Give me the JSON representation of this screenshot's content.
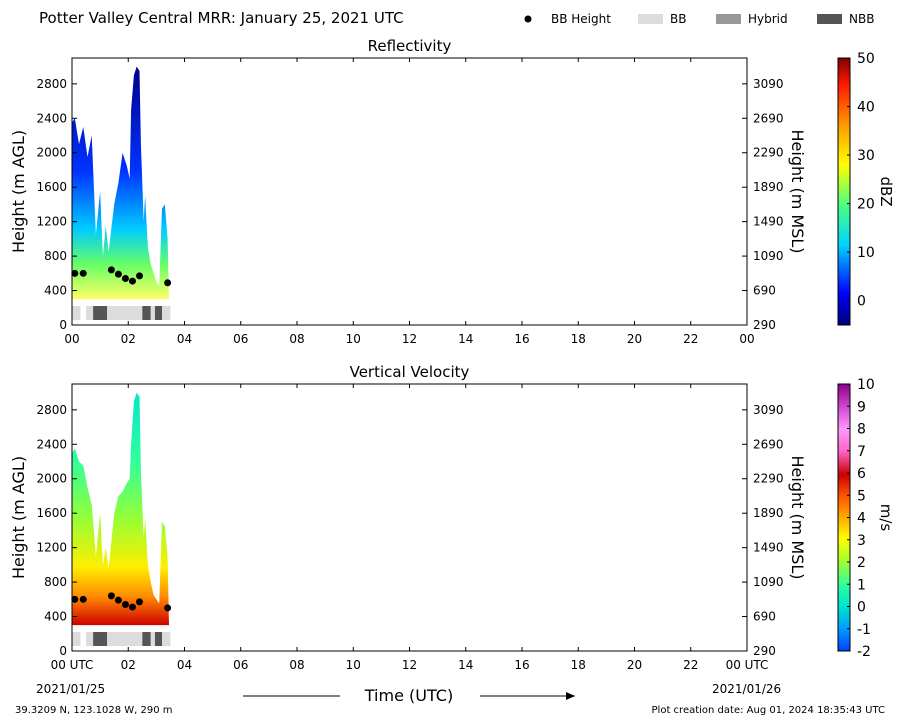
{
  "header": {
    "title": "Potter Valley Central MRR:  January 25, 2021 UTC"
  },
  "legend": [
    {
      "label": "BB Height",
      "kind": "dot",
      "color": "#000000"
    },
    {
      "label": "BB",
      "kind": "box",
      "color": "#dcdcdc"
    },
    {
      "label": "Hybrid",
      "kind": "box",
      "color": "#999999"
    },
    {
      "label": "NBB",
      "kind": "box",
      "color": "#555555"
    }
  ],
  "footer": {
    "location": "39.3209 N, 123.1028 W, 290 m",
    "created": "Plot creation date: Aug 01, 2024 18:35:43 UTC",
    "xlabel": "Time (UTC)",
    "start_date": "2021/01/25",
    "end_date": "2021/01/26"
  },
  "chart_data": [
    {
      "type": "heatmap",
      "title": "Reflectivity",
      "ylabel": "Height (m AGL)",
      "y2label": "Height (m MSL)",
      "xlim": [
        0,
        24
      ],
      "ylim": [
        0,
        3100
      ],
      "x_ticks": [
        "00",
        "02",
        "04",
        "06",
        "08",
        "10",
        "12",
        "14",
        "16",
        "18",
        "20",
        "22",
        "00"
      ],
      "y_ticks": [
        "0",
        "400",
        "800",
        "1200",
        "1600",
        "2000",
        "2400",
        "2800"
      ],
      "y2_ticks": [
        "290",
        "690",
        "1090",
        "1490",
        "1890",
        "2290",
        "2690",
        "3090"
      ],
      "colorbar": {
        "label": "dBZ",
        "range": [
          -5,
          50
        ],
        "ticks": [
          "0",
          "10",
          "20",
          "30",
          "40",
          "50"
        ]
      },
      "echo_top_m": [
        [
          0.0,
          2350
        ],
        [
          0.1,
          2400
        ],
        [
          0.25,
          2100
        ],
        [
          0.4,
          2300
        ],
        [
          0.55,
          1950
        ],
        [
          0.7,
          2200
        ],
        [
          0.85,
          1050
        ],
        [
          1.0,
          1550
        ],
        [
          1.1,
          800
        ],
        [
          1.2,
          1150
        ],
        [
          1.3,
          850
        ],
        [
          1.5,
          1400
        ],
        [
          1.65,
          1650
        ],
        [
          1.8,
          2000
        ],
        [
          1.95,
          1850
        ],
        [
          2.05,
          1700
        ],
        [
          2.1,
          2500
        ],
        [
          2.2,
          2900
        ],
        [
          2.3,
          3000
        ],
        [
          2.4,
          2950
        ],
        [
          2.45,
          2100
        ],
        [
          2.55,
          1200
        ],
        [
          2.6,
          1500
        ],
        [
          2.7,
          900
        ],
        [
          2.8,
          700
        ],
        [
          2.9,
          600
        ],
        [
          3.0,
          500
        ],
        [
          3.1,
          450
        ],
        [
          3.2,
          1350
        ],
        [
          3.3,
          1400
        ],
        [
          3.4,
          1000
        ],
        [
          3.45,
          300
        ]
      ],
      "bb_height_m": [
        [
          0.1,
          600
        ],
        [
          0.4,
          600
        ],
        [
          1.4,
          640
        ],
        [
          1.65,
          590
        ],
        [
          1.9,
          540
        ],
        [
          2.15,
          510
        ],
        [
          2.4,
          570
        ],
        [
          3.4,
          490
        ]
      ],
      "bb_type": [
        {
          "start": 0.0,
          "end": 0.3,
          "type": "BB"
        },
        {
          "start": 0.5,
          "end": 0.75,
          "type": "BB"
        },
        {
          "start": 0.75,
          "end": 1.25,
          "type": "NBB"
        },
        {
          "start": 1.25,
          "end": 2.5,
          "type": "BB"
        },
        {
          "start": 2.5,
          "end": 2.8,
          "type": "NBB"
        },
        {
          "start": 2.8,
          "end": 2.95,
          "type": "BB"
        },
        {
          "start": 2.95,
          "end": 3.2,
          "type": "NBB"
        },
        {
          "start": 3.2,
          "end": 3.5,
          "type": "BB"
        }
      ]
    },
    {
      "type": "heatmap",
      "title": "Vertical Velocity",
      "ylabel": "Height (m AGL)",
      "y2label": "Height (m MSL)",
      "xlim": [
        0,
        24
      ],
      "ylim": [
        0,
        3100
      ],
      "x_ticks": [
        "00 UTC",
        "02",
        "04",
        "06",
        "08",
        "10",
        "12",
        "14",
        "16",
        "18",
        "20",
        "22",
        "00 UTC"
      ],
      "y_ticks": [
        "0",
        "400",
        "800",
        "1200",
        "1600",
        "2000",
        "2400",
        "2800"
      ],
      "y2_ticks": [
        "290",
        "690",
        "1090",
        "1490",
        "1890",
        "2290",
        "2690",
        "3090"
      ],
      "colorbar": {
        "label": "m/s",
        "range": [
          -2,
          10
        ],
        "ticks": [
          "-2",
          "-1",
          "0",
          "1",
          "2",
          "3",
          "4",
          "5",
          "6",
          "7",
          "8",
          "9",
          "10"
        ]
      },
      "echo_top_m": [
        [
          0.0,
          2300
        ],
        [
          0.1,
          2350
        ],
        [
          0.25,
          2200
        ],
        [
          0.4,
          2150
        ],
        [
          0.55,
          1900
        ],
        [
          0.7,
          1700
        ],
        [
          0.85,
          1100
        ],
        [
          1.0,
          1600
        ],
        [
          1.1,
          1000
        ],
        [
          1.2,
          1200
        ],
        [
          1.3,
          950
        ],
        [
          1.5,
          1600
        ],
        [
          1.65,
          1800
        ],
        [
          1.8,
          1850
        ],
        [
          1.95,
          1950
        ],
        [
          2.05,
          2000
        ],
        [
          2.1,
          2400
        ],
        [
          2.2,
          2900
        ],
        [
          2.3,
          3000
        ],
        [
          2.4,
          2950
        ],
        [
          2.45,
          2100
        ],
        [
          2.55,
          1300
        ],
        [
          2.6,
          1550
        ],
        [
          2.7,
          1000
        ],
        [
          2.8,
          800
        ],
        [
          2.9,
          650
        ],
        [
          3.0,
          600
        ],
        [
          3.1,
          550
        ],
        [
          3.2,
          1500
        ],
        [
          3.3,
          1450
        ],
        [
          3.4,
          1100
        ],
        [
          3.45,
          300
        ]
      ],
      "bb_height_m": [
        [
          0.1,
          600
        ],
        [
          0.4,
          600
        ],
        [
          1.4,
          640
        ],
        [
          1.65,
          590
        ],
        [
          1.9,
          540
        ],
        [
          2.15,
          510
        ],
        [
          2.4,
          570
        ],
        [
          3.4,
          500
        ]
      ],
      "bb_type": [
        {
          "start": 0.0,
          "end": 0.3,
          "type": "BB"
        },
        {
          "start": 0.5,
          "end": 0.75,
          "type": "BB"
        },
        {
          "start": 0.75,
          "end": 1.25,
          "type": "NBB"
        },
        {
          "start": 1.25,
          "end": 2.5,
          "type": "BB"
        },
        {
          "start": 2.5,
          "end": 2.8,
          "type": "NBB"
        },
        {
          "start": 2.8,
          "end": 2.95,
          "type": "BB"
        },
        {
          "start": 2.95,
          "end": 3.2,
          "type": "NBB"
        },
        {
          "start": 3.2,
          "end": 3.5,
          "type": "BB"
        }
      ]
    }
  ]
}
